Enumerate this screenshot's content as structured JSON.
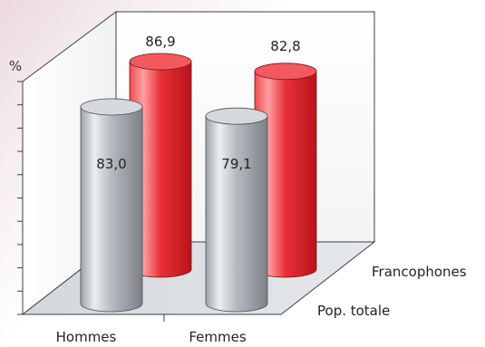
{
  "chart_data": {
    "type": "bar",
    "categories": [
      "Hommes",
      "Femmes"
    ],
    "series": [
      {
        "name": "Pop. totale",
        "values": [
          83.0,
          79.1
        ],
        "labels": [
          "83,0",
          "79,1"
        ]
      },
      {
        "name": "Francophones",
        "values": [
          86.9,
          82.8
        ],
        "labels": [
          "86,9",
          "82,8"
        ]
      }
    ],
    "ylabel": "%",
    "ylim": [
      0,
      100
    ],
    "grid": false,
    "legend": "depth-axis-labels",
    "colors": {
      "front": "#a9acb1",
      "back": "#d9242b",
      "panel": "#dfe2e6",
      "edge": "#44484d"
    }
  }
}
